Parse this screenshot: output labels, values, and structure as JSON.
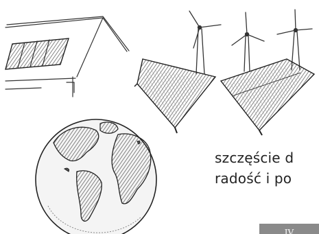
{
  "text": {
    "line1": "szczęście d",
    "line2": "radość i po",
    "page_tab": "IV"
  },
  "illustration": {
    "style": "pencil sketch",
    "elements": [
      "house-with-solar-panel",
      "wind-turbine",
      "solar-panel",
      "earth-globe"
    ]
  },
  "colors": {
    "ink": "#222222",
    "tab_background": "#8a8a8a",
    "tab_text": "#ffffff"
  }
}
